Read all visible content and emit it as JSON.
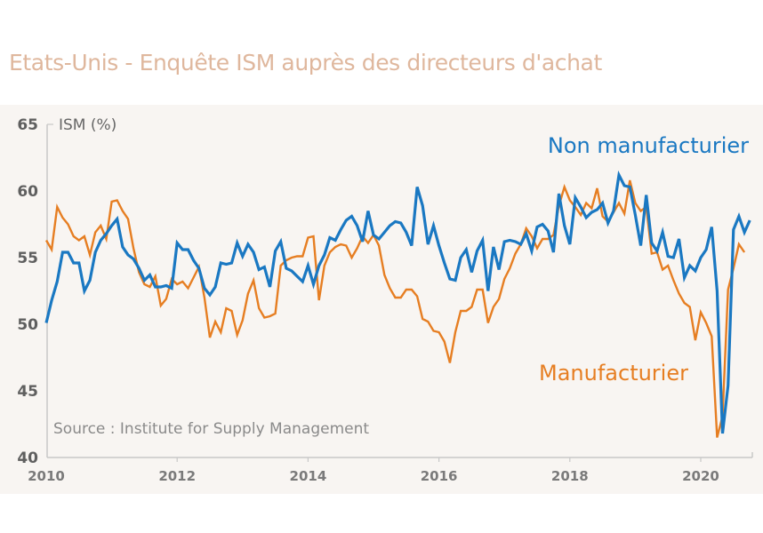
{
  "title": "Etats-Unis - Enquête ISM auprès des directeurs d'achat",
  "colors": {
    "title": "#dfb79d",
    "non_manufacturing": "#1a78c2",
    "manufacturing": "#e67e22",
    "panel_background": "#f8f5f2",
    "axis": "#c8c8c8"
  },
  "chart_data": {
    "type": "line",
    "title": "Etats-Unis - Enquête ISM auprès des directeurs d'achat",
    "ylabel": "ISM (%)",
    "xlabel": "",
    "ylim": [
      40,
      65
    ],
    "yticks": [
      40,
      45,
      50,
      55,
      60,
      65
    ],
    "xticks": [
      "2010",
      "2012",
      "2014",
      "2016",
      "2018",
      "2020"
    ],
    "x_start": "2010-01",
    "x_frequency": "monthly",
    "grid": false,
    "source": "Source : Institute for Supply Management",
    "series": [
      {
        "name": "Non manufacturier",
        "color": "#1a78c2",
        "values": [
          50.1,
          51.8,
          53.2,
          55.4,
          55.4,
          54.6,
          54.6,
          52.5,
          53.3,
          55.4,
          56.3,
          56.8,
          57.4,
          57.9,
          55.8,
          55.2,
          54.9,
          54.2,
          53.3,
          53.7,
          52.8,
          52.8,
          52.9,
          52.7,
          56.1,
          55.6,
          55.6,
          54.8,
          54.2,
          52.7,
          52.2,
          52.8,
          54.6,
          54.5,
          54.6,
          56.1,
          55.1,
          56.0,
          55.4,
          54.1,
          54.3,
          52.8,
          55.5,
          56.2,
          54.2,
          54.0,
          53.6,
          53.2,
          54.4,
          53.0,
          54.4,
          55.2,
          56.5,
          56.3,
          57.1,
          57.8,
          58.1,
          57.4,
          56.2,
          58.5,
          56.7,
          56.4,
          56.9,
          57.4,
          57.7,
          57.6,
          56.9,
          55.9,
          60.3,
          58.9,
          56.0,
          57.4,
          55.9,
          54.6,
          53.4,
          53.3,
          55.0,
          55.6,
          53.9,
          55.5,
          56.3,
          52.5,
          55.8,
          54.1,
          56.2,
          56.3,
          56.2,
          56.0,
          56.8,
          55.5,
          57.3,
          57.5,
          57.0,
          55.4,
          59.8,
          57.4,
          56.0,
          59.5,
          58.8,
          58.0,
          58.4,
          58.6,
          59.1,
          57.6,
          58.5,
          61.2,
          60.4,
          60.3,
          58.2,
          55.9,
          59.7,
          56.1,
          55.5,
          56.9,
          55.1,
          55.0,
          56.4,
          53.5,
          54.4,
          54.0,
          55.0,
          55.6,
          57.3,
          52.5,
          41.8,
          45.4,
          57.1,
          58.1,
          56.9,
          57.8
        ]
      },
      {
        "name": "Manufacturier",
        "color": "#e67e22",
        "values": [
          56.3,
          55.6,
          58.8,
          58.0,
          57.5,
          56.6,
          56.3,
          56.6,
          55.2,
          56.9,
          57.4,
          56.4,
          59.2,
          59.3,
          58.5,
          57.9,
          55.7,
          53.9,
          53.0,
          52.8,
          53.6,
          51.4,
          51.9,
          53.4,
          53.0,
          53.2,
          52.7,
          53.5,
          54.3,
          52.0,
          49.0,
          50.2,
          49.4,
          51.2,
          51.0,
          49.2,
          50.3,
          52.3,
          53.3,
          51.2,
          50.5,
          50.6,
          50.8,
          54.4,
          54.8,
          55.0,
          55.1,
          55.1,
          56.5,
          56.6,
          51.8,
          54.4,
          55.4,
          55.8,
          56.0,
          55.9,
          55.0,
          55.7,
          56.6,
          56.1,
          56.7,
          55.9,
          53.7,
          52.7,
          52.0,
          52.0,
          52.6,
          52.6,
          52.1,
          50.4,
          50.2,
          49.5,
          49.4,
          48.7,
          47.1,
          49.4,
          51.0,
          51.0,
          51.3,
          52.6,
          52.6,
          50.1,
          51.3,
          51.9,
          53.4,
          54.2,
          55.3,
          56.0,
          57.2,
          56.6,
          55.7,
          56.4,
          56.4,
          56.7,
          58.9,
          60.3,
          59.3,
          58.8,
          58.2,
          59.1,
          58.7,
          60.2,
          58.1,
          57.7,
          58.4,
          59.1,
          58.3,
          60.8,
          59.1,
          58.5,
          58.8,
          55.3,
          55.4,
          54.1,
          54.4,
          53.3,
          52.3,
          51.6,
          51.3,
          48.8,
          50.9,
          50.1,
          49.1,
          41.5,
          43.1,
          52.6,
          54.2,
          56.0,
          55.4
        ]
      }
    ],
    "legend": [
      {
        "label": "Non manufacturier",
        "placement": "top-right",
        "color": "#1a78c2"
      },
      {
        "label": "Manufacturier",
        "placement": "lower-right",
        "color": "#e67e22"
      }
    ]
  }
}
